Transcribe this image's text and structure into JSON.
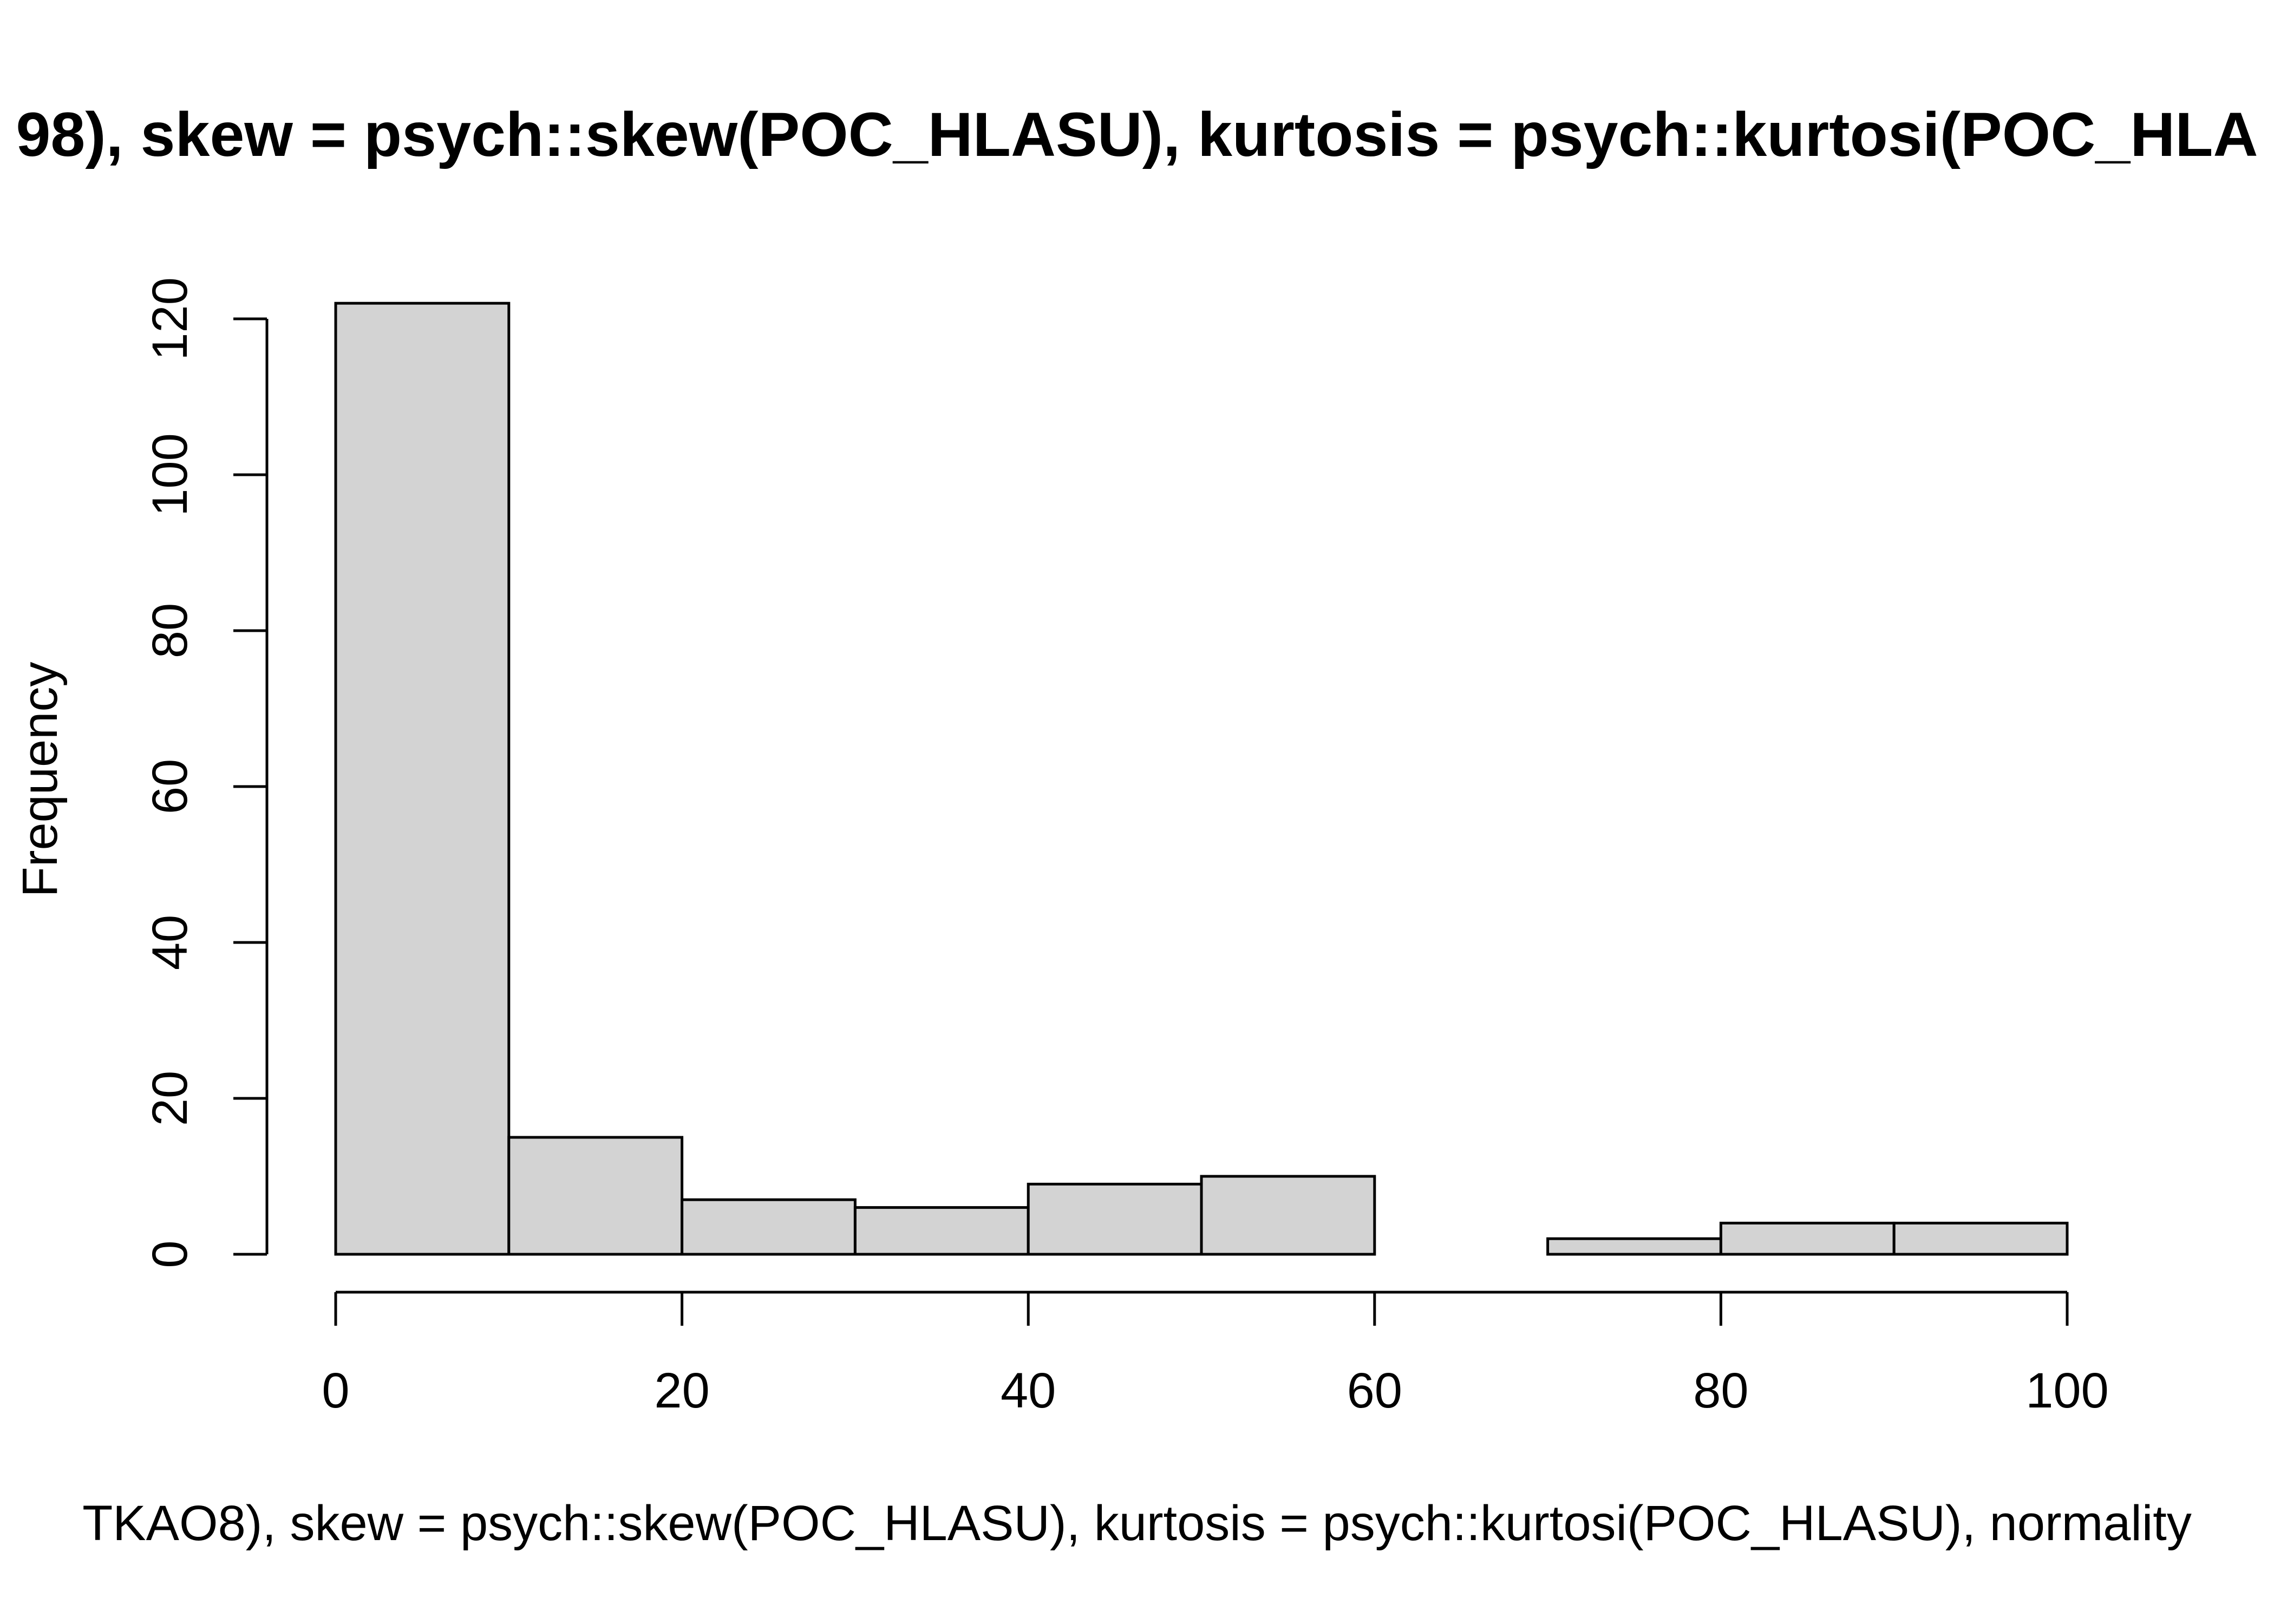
{
  "chart_data": {
    "type": "bar",
    "title": "98), skew = psych::skew(POC_HLASU), kurtosis = psych::kurtosi(POC_HLA",
    "xlabel": "TKAO8), skew = psych::skew(POC_HLASU), kurtosis = psych::kurtosi(POC_HLASU), normality",
    "ylabel": "Frequency",
    "bins": [
      {
        "from": 0,
        "to": 10,
        "count": 122
      },
      {
        "from": 10,
        "to": 20,
        "count": 15
      },
      {
        "from": 20,
        "to": 30,
        "count": 7
      },
      {
        "from": 30,
        "to": 40,
        "count": 6
      },
      {
        "from": 40,
        "to": 50,
        "count": 9
      },
      {
        "from": 50,
        "to": 60,
        "count": 10
      },
      {
        "from": 60,
        "to": 70,
        "count": 0
      },
      {
        "from": 70,
        "to": 80,
        "count": 2
      },
      {
        "from": 80,
        "to": 90,
        "count": 4
      },
      {
        "from": 90,
        "to": 100,
        "count": 4
      }
    ],
    "xlim": [
      0,
      100
    ],
    "ylim": [
      0,
      120
    ],
    "x_ticks": [
      0,
      20,
      40,
      60,
      80,
      100
    ],
    "x_tick_labels": [
      "0",
      "20",
      "40",
      "60",
      "80",
      "100"
    ],
    "y_ticks": [
      0,
      20,
      40,
      60,
      80,
      100,
      120
    ],
    "y_tick_labels": [
      "0",
      "20",
      "40",
      "60",
      "80",
      "100",
      "120"
    ],
    "grid": false,
    "colors": {
      "bar_fill": "#d3d3d3",
      "bar_stroke": "#000000"
    }
  }
}
